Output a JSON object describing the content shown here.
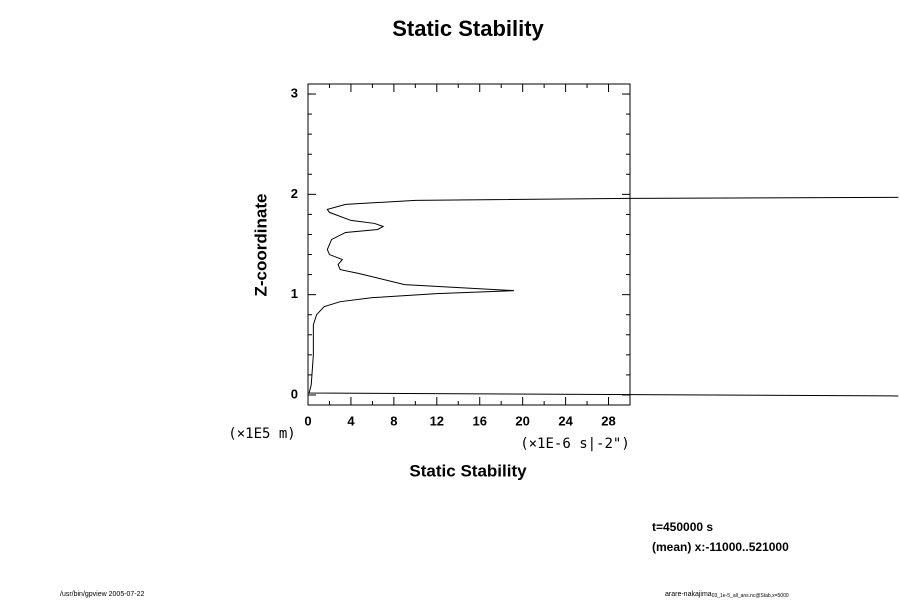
{
  "chart_data": {
    "type": "line",
    "title": "Static Stability",
    "x_label": "Static Stability",
    "x_units": "(×1E-6 s|-2\")",
    "y_label": "Z-coordinate",
    "y_units": "(×1E5 m)",
    "xlim": [
      0,
      30
    ],
    "ylim": [
      -0.1,
      3.1
    ],
    "xticks": [
      0,
      4,
      8,
      12,
      16,
      20,
      24,
      28
    ],
    "yticks": [
      0,
      1,
      2,
      3
    ],
    "xminor_ticks": [
      2,
      6,
      10,
      14,
      18,
      22,
      26,
      30
    ],
    "yminor_ticks": [
      0.2,
      0.4,
      0.6,
      0.8,
      1.2,
      1.4,
      1.6,
      1.8,
      2.2,
      2.4,
      2.6,
      2.8,
      3.0
    ],
    "series": [
      {
        "color": "#000000",
        "x": [
          55,
          0.1,
          0.3,
          0.5,
          0.5,
          0.8,
          1.5,
          3,
          6,
          12,
          19.2,
          9,
          4.8,
          3,
          2.8,
          3.2,
          2,
          1.8,
          2.2,
          3.5,
          6.5,
          7,
          6.2,
          4,
          2,
          1.8,
          3.5,
          10,
          30,
          55
        ],
        "values": [
          -0.01,
          0.02,
          0.1,
          0.4,
          0.7,
          0.8,
          0.88,
          0.93,
          0.97,
          1.01,
          1.04,
          1.1,
          1.21,
          1.25,
          1.3,
          1.35,
          1.4,
          1.45,
          1.55,
          1.62,
          1.65,
          1.68,
          1.71,
          1.74,
          1.82,
          1.85,
          1.9,
          1.94,
          1.96,
          1.97
        ]
      }
    ],
    "annotations": [
      "t=450000 s",
      "(mean) x:-11000..521000"
    ],
    "footer_left": "/usr/bin/gpview 2005-07-22",
    "footer_right": "arare-nakajima",
    "footer_right_sub": "03_1e-5_all_ans.nc@Stab,x=5000"
  }
}
